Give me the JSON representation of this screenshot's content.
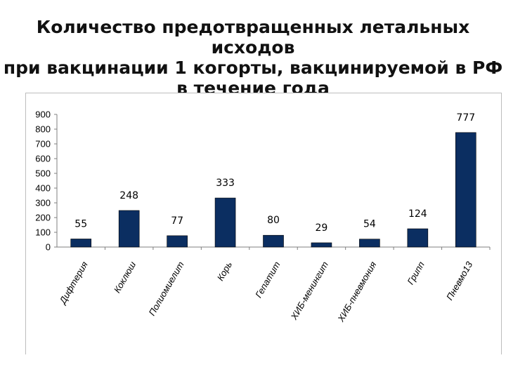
{
  "title_lines": [
    "Количество предотвращенных летальных исходов",
    "при вакцинации 1 когорты, вакцинируемой в РФ",
    "в течение года"
  ],
  "colors": {
    "bar": "#0b2e61",
    "axis": "#7f7f7f",
    "grid": "#d9d9d9"
  },
  "chart_data": {
    "type": "bar",
    "title": "Количество предотвращенных летальных исходов при вакцинации 1 когорты, вакцинируемой в РФ в течение года",
    "categories": [
      "Дифтерия",
      "Коклюш",
      "Полиомиелит",
      "Корь",
      "Гепатит",
      "ХИБ-менингит",
      "ХИБ-пневмония",
      "Грипп",
      "Пневмо13"
    ],
    "values": [
      55,
      248,
      77,
      333,
      80,
      29,
      54,
      124,
      777
    ],
    "data_labels": [
      "55",
      "248",
      "77",
      "333",
      "80",
      "29",
      "54",
      "124",
      "777"
    ],
    "ylim": [
      0,
      900
    ],
    "yticks": [
      "0",
      "100",
      "200",
      "300",
      "400",
      "500",
      "600",
      "700",
      "800",
      "900"
    ],
    "grid": false,
    "legend": "none"
  }
}
